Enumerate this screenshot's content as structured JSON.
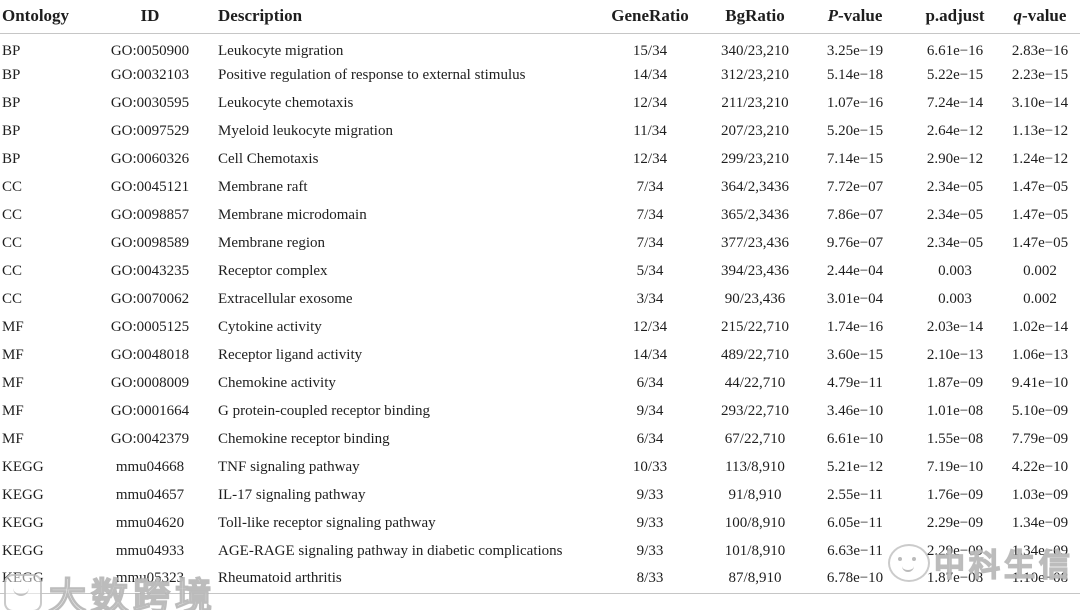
{
  "table": {
    "columns": [
      {
        "key": "ontology",
        "italic": "",
        "label": "Ontology"
      },
      {
        "key": "id",
        "italic": "",
        "label": "ID"
      },
      {
        "key": "description",
        "italic": "",
        "label": "Description"
      },
      {
        "key": "gene-ratio",
        "italic": "",
        "label": "GeneRatio"
      },
      {
        "key": "bg-ratio",
        "italic": "",
        "label": "BgRatio"
      },
      {
        "key": "p-value",
        "italic": "P",
        "label": "-value"
      },
      {
        "key": "p-adjust",
        "italic": "",
        "label": "p.adjust"
      },
      {
        "key": "q-value",
        "italic": "q",
        "label": "-value"
      }
    ],
    "rows": [
      [
        "BP",
        "GO:0050900",
        "Leukocyte migration",
        "15/34",
        "340/23,210",
        "3.25e−19",
        "6.61e−16",
        "2.83e−16"
      ],
      [
        "BP",
        "GO:0032103",
        "Positive regulation of response to external stimulus",
        "14/34",
        "312/23,210",
        "5.14e−18",
        "5.22e−15",
        "2.23e−15"
      ],
      [
        "BP",
        "GO:0030595",
        "Leukocyte chemotaxis",
        "12/34",
        "211/23,210",
        "1.07e−16",
        "7.24e−14",
        "3.10e−14"
      ],
      [
        "BP",
        "GO:0097529",
        "Myeloid leukocyte migration",
        "11/34",
        "207/23,210",
        "5.20e−15",
        "2.64e−12",
        "1.13e−12"
      ],
      [
        "BP",
        "GO:0060326",
        "Cell Chemotaxis",
        "12/34",
        "299/23,210",
        "7.14e−15",
        "2.90e−12",
        "1.24e−12"
      ],
      [
        "CC",
        "GO:0045121",
        "Membrane raft",
        "7/34",
        "364/2,3436",
        "7.72e−07",
        "2.34e−05",
        "1.47e−05"
      ],
      [
        "CC",
        "GO:0098857",
        "Membrane microdomain",
        "7/34",
        "365/2,3436",
        "7.86e−07",
        "2.34e−05",
        "1.47e−05"
      ],
      [
        "CC",
        "GO:0098589",
        "Membrane region",
        "7/34",
        "377/23,436",
        "9.76e−07",
        "2.34e−05",
        "1.47e−05"
      ],
      [
        "CC",
        "GO:0043235",
        "Receptor complex",
        "5/34",
        "394/23,436",
        "2.44e−04",
        "0.003",
        "0.002"
      ],
      [
        "CC",
        "GO:0070062",
        "Extracellular exosome",
        "3/34",
        "90/23,436",
        "3.01e−04",
        "0.003",
        "0.002"
      ],
      [
        "MF",
        "GO:0005125",
        "Cytokine activity",
        "12/34",
        "215/22,710",
        "1.74e−16",
        "2.03e−14",
        "1.02e−14"
      ],
      [
        "MF",
        "GO:0048018",
        "Receptor ligand activity",
        "14/34",
        "489/22,710",
        "3.60e−15",
        "2.10e−13",
        "1.06e−13"
      ],
      [
        "MF",
        "GO:0008009",
        "Chemokine activity",
        "6/34",
        "44/22,710",
        "4.79e−11",
        "1.87e−09",
        "9.41e−10"
      ],
      [
        "MF",
        "GO:0001664",
        "G protein-coupled receptor binding",
        "9/34",
        "293/22,710",
        "3.46e−10",
        "1.01e−08",
        "5.10e−09"
      ],
      [
        "MF",
        "GO:0042379",
        "Chemokine receptor binding",
        "6/34",
        "67/22,710",
        "6.61e−10",
        "1.55e−08",
        "7.79e−09"
      ],
      [
        "KEGG",
        "mmu04668",
        "TNF signaling pathway",
        "10/33",
        "113/8,910",
        "5.21e−12",
        "7.19e−10",
        "4.22e−10"
      ],
      [
        "KEGG",
        "mmu04657",
        "IL-17 signaling pathway",
        "9/33",
        "91/8,910",
        "2.55e−11",
        "1.76e−09",
        "1.03e−09"
      ],
      [
        "KEGG",
        "mmu04620",
        "Toll-like receptor signaling pathway",
        "9/33",
        "100/8,910",
        "6.05e−11",
        "2.29e−09",
        "1.34e−09"
      ],
      [
        "KEGG",
        "mmu04933",
        "AGE-RAGE signaling pathway in diabetic complications",
        "9/33",
        "101/8,910",
        "6.63e−11",
        "2.29e−09",
        "1.34e−09"
      ],
      [
        "KEGG",
        "mmu05323",
        "Rheumatoid arthritis",
        "8/33",
        "87/8,910",
        "6.78e−10",
        "1.87e−08",
        "1.10e−08"
      ]
    ]
  },
  "watermarks": {
    "left": {
      "text": "大数跨境",
      "logo": "rounded-square-face-logo"
    },
    "right": {
      "text": "中科生信",
      "logo": "animal-face-logo"
    }
  }
}
